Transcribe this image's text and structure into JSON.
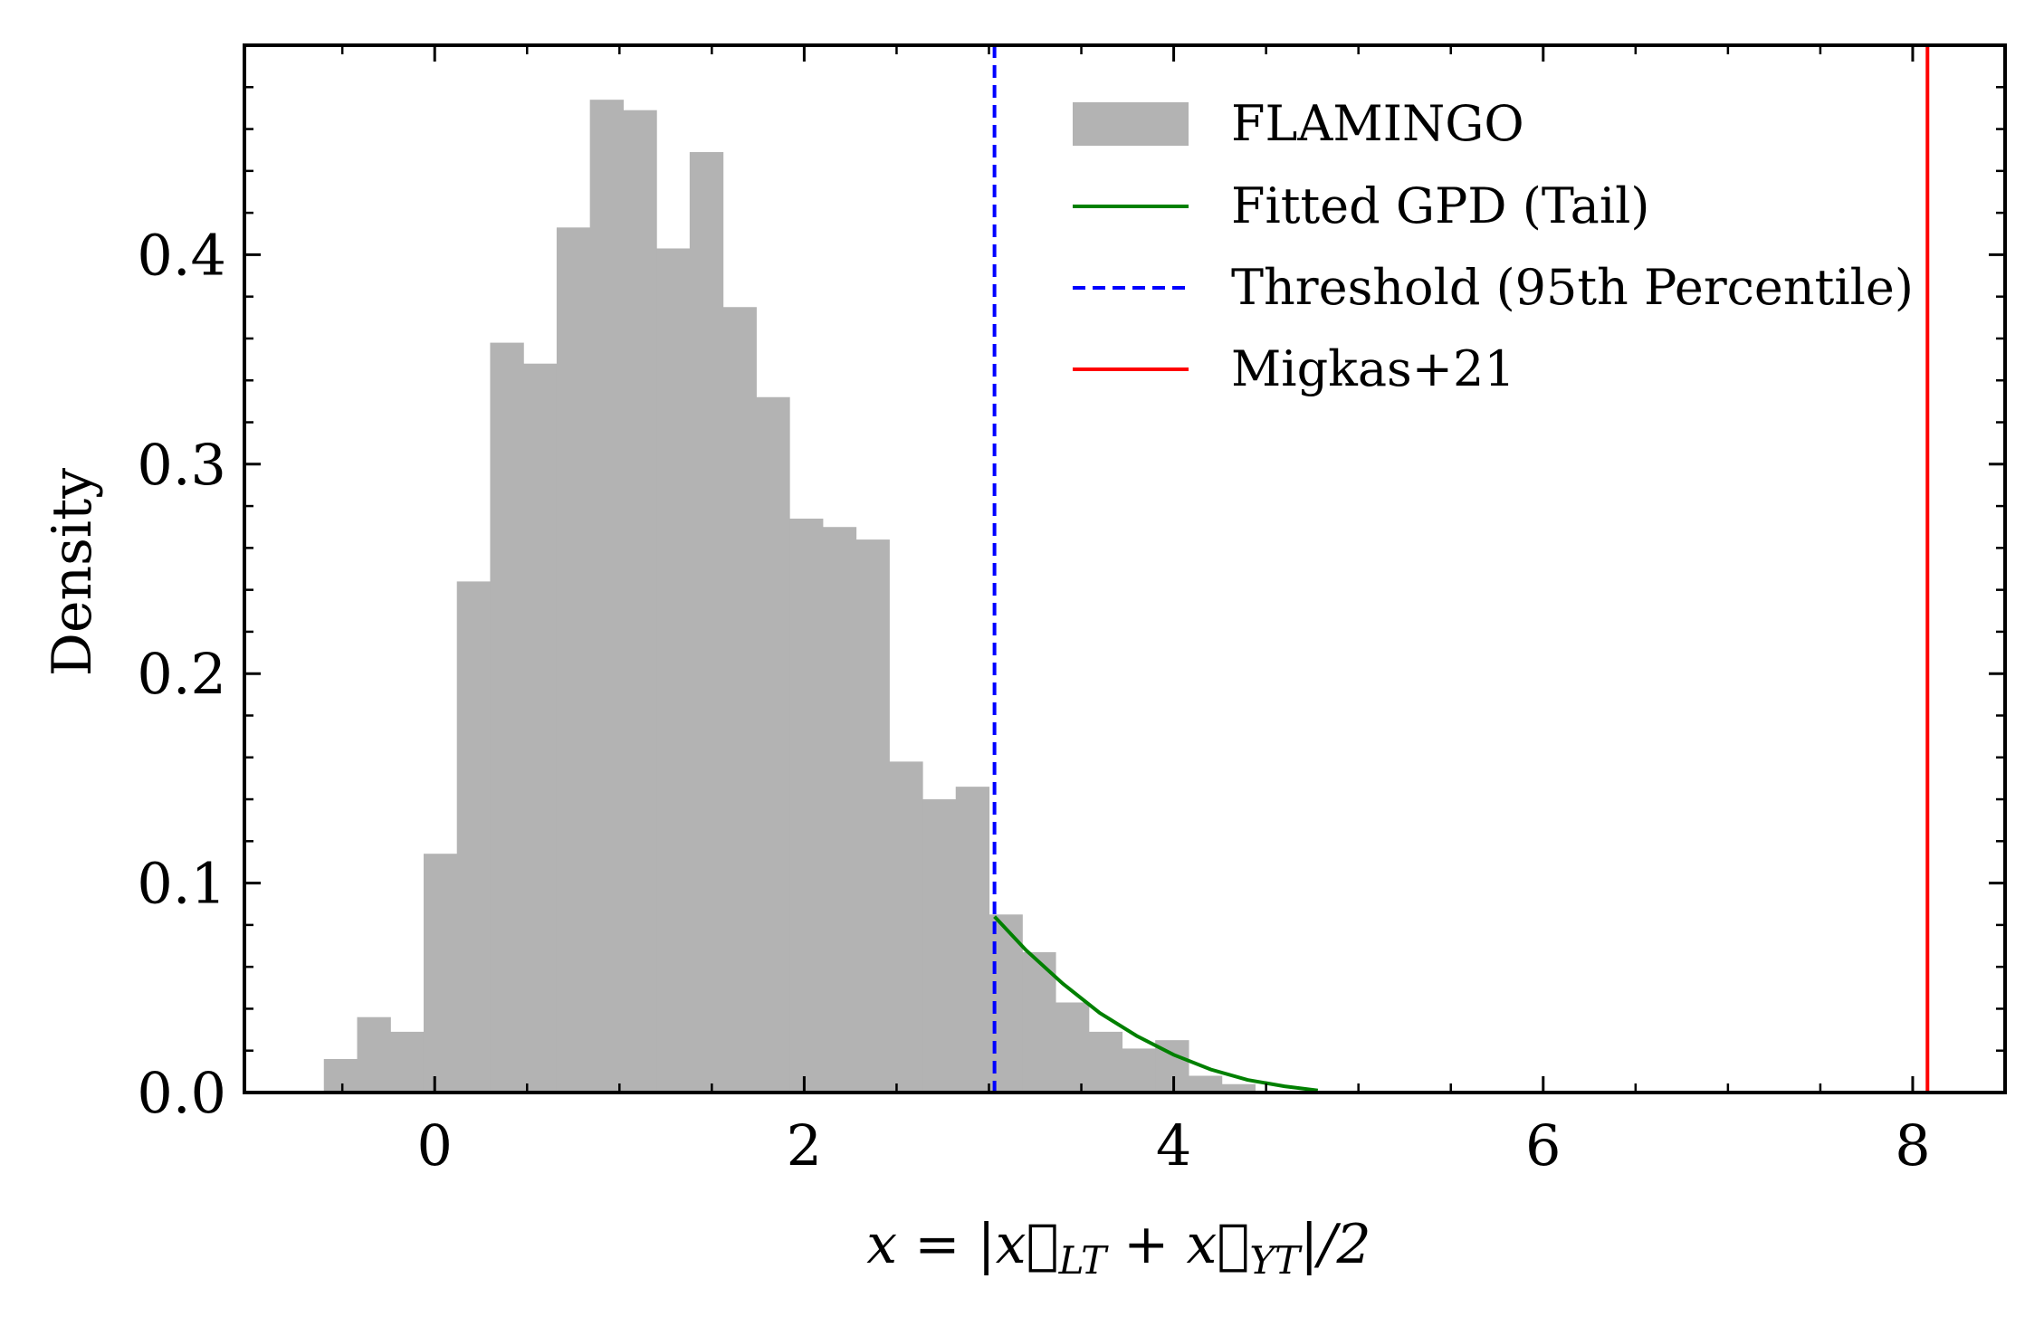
{
  "chart_data": {
    "type": "bar",
    "bin_edges": [
      -0.6,
      -0.42,
      -0.24,
      -0.06,
      0.12,
      0.3,
      0.48,
      0.66,
      0.84,
      1.02,
      1.2,
      1.38,
      1.56,
      1.74,
      1.92,
      2.1,
      2.28,
      2.46,
      2.64,
      2.82,
      3.0,
      3.18,
      3.36,
      3.54,
      3.72,
      3.9,
      4.08,
      4.26,
      4.44
    ],
    "values": [
      0.016,
      0.036,
      0.029,
      0.114,
      0.244,
      0.358,
      0.348,
      0.413,
      0.474,
      0.469,
      0.403,
      0.449,
      0.375,
      0.332,
      0.274,
      0.27,
      0.264,
      0.158,
      0.14,
      0.146,
      0.085,
      0.067,
      0.043,
      0.029,
      0.021,
      0.025,
      0.008,
      0.004
    ],
    "series": [
      {
        "name": "FLAMINGO",
        "kind": "histogram",
        "color": "#b3b3b3"
      },
      {
        "name": "Fitted GPD (Tail)",
        "kind": "line",
        "color": "#008000",
        "x": [
          3.03,
          3.2,
          3.4,
          3.6,
          3.8,
          4.0,
          4.2,
          4.4,
          4.6,
          4.78
        ],
        "y": [
          0.084,
          0.068,
          0.052,
          0.038,
          0.027,
          0.018,
          0.011,
          0.006,
          0.003,
          0.001
        ]
      },
      {
        "name": "Threshold (95th Percentile)",
        "kind": "vline",
        "color": "#0000ff",
        "dashed": true,
        "x": 3.03
      },
      {
        "name": "Migkas+21",
        "kind": "vline",
        "color": "#ff0000",
        "dashed": false,
        "x": 8.08
      }
    ],
    "xlim": [
      -1.03,
      8.5
    ],
    "ylim": [
      0.0,
      0.5
    ],
    "x_ticks": [
      0,
      2,
      4,
      6,
      8
    ],
    "x_tick_labels": [
      "0",
      "2",
      "4",
      "6",
      "8"
    ],
    "y_ticks": [
      0.0,
      0.1,
      0.2,
      0.3,
      0.4
    ],
    "y_tick_labels": [
      "0.0",
      "0.1",
      "0.2",
      "0.3",
      "0.4"
    ],
    "xlabel": "x = |x⃗LT + x⃗YT|/2",
    "ylabel": "Density",
    "legend": {
      "placement": "top-right",
      "entries": [
        "FLAMINGO",
        "Fitted GPD (Tail)",
        "Threshold (95th Percentile)",
        "Migkas+21"
      ]
    },
    "grid": false
  }
}
